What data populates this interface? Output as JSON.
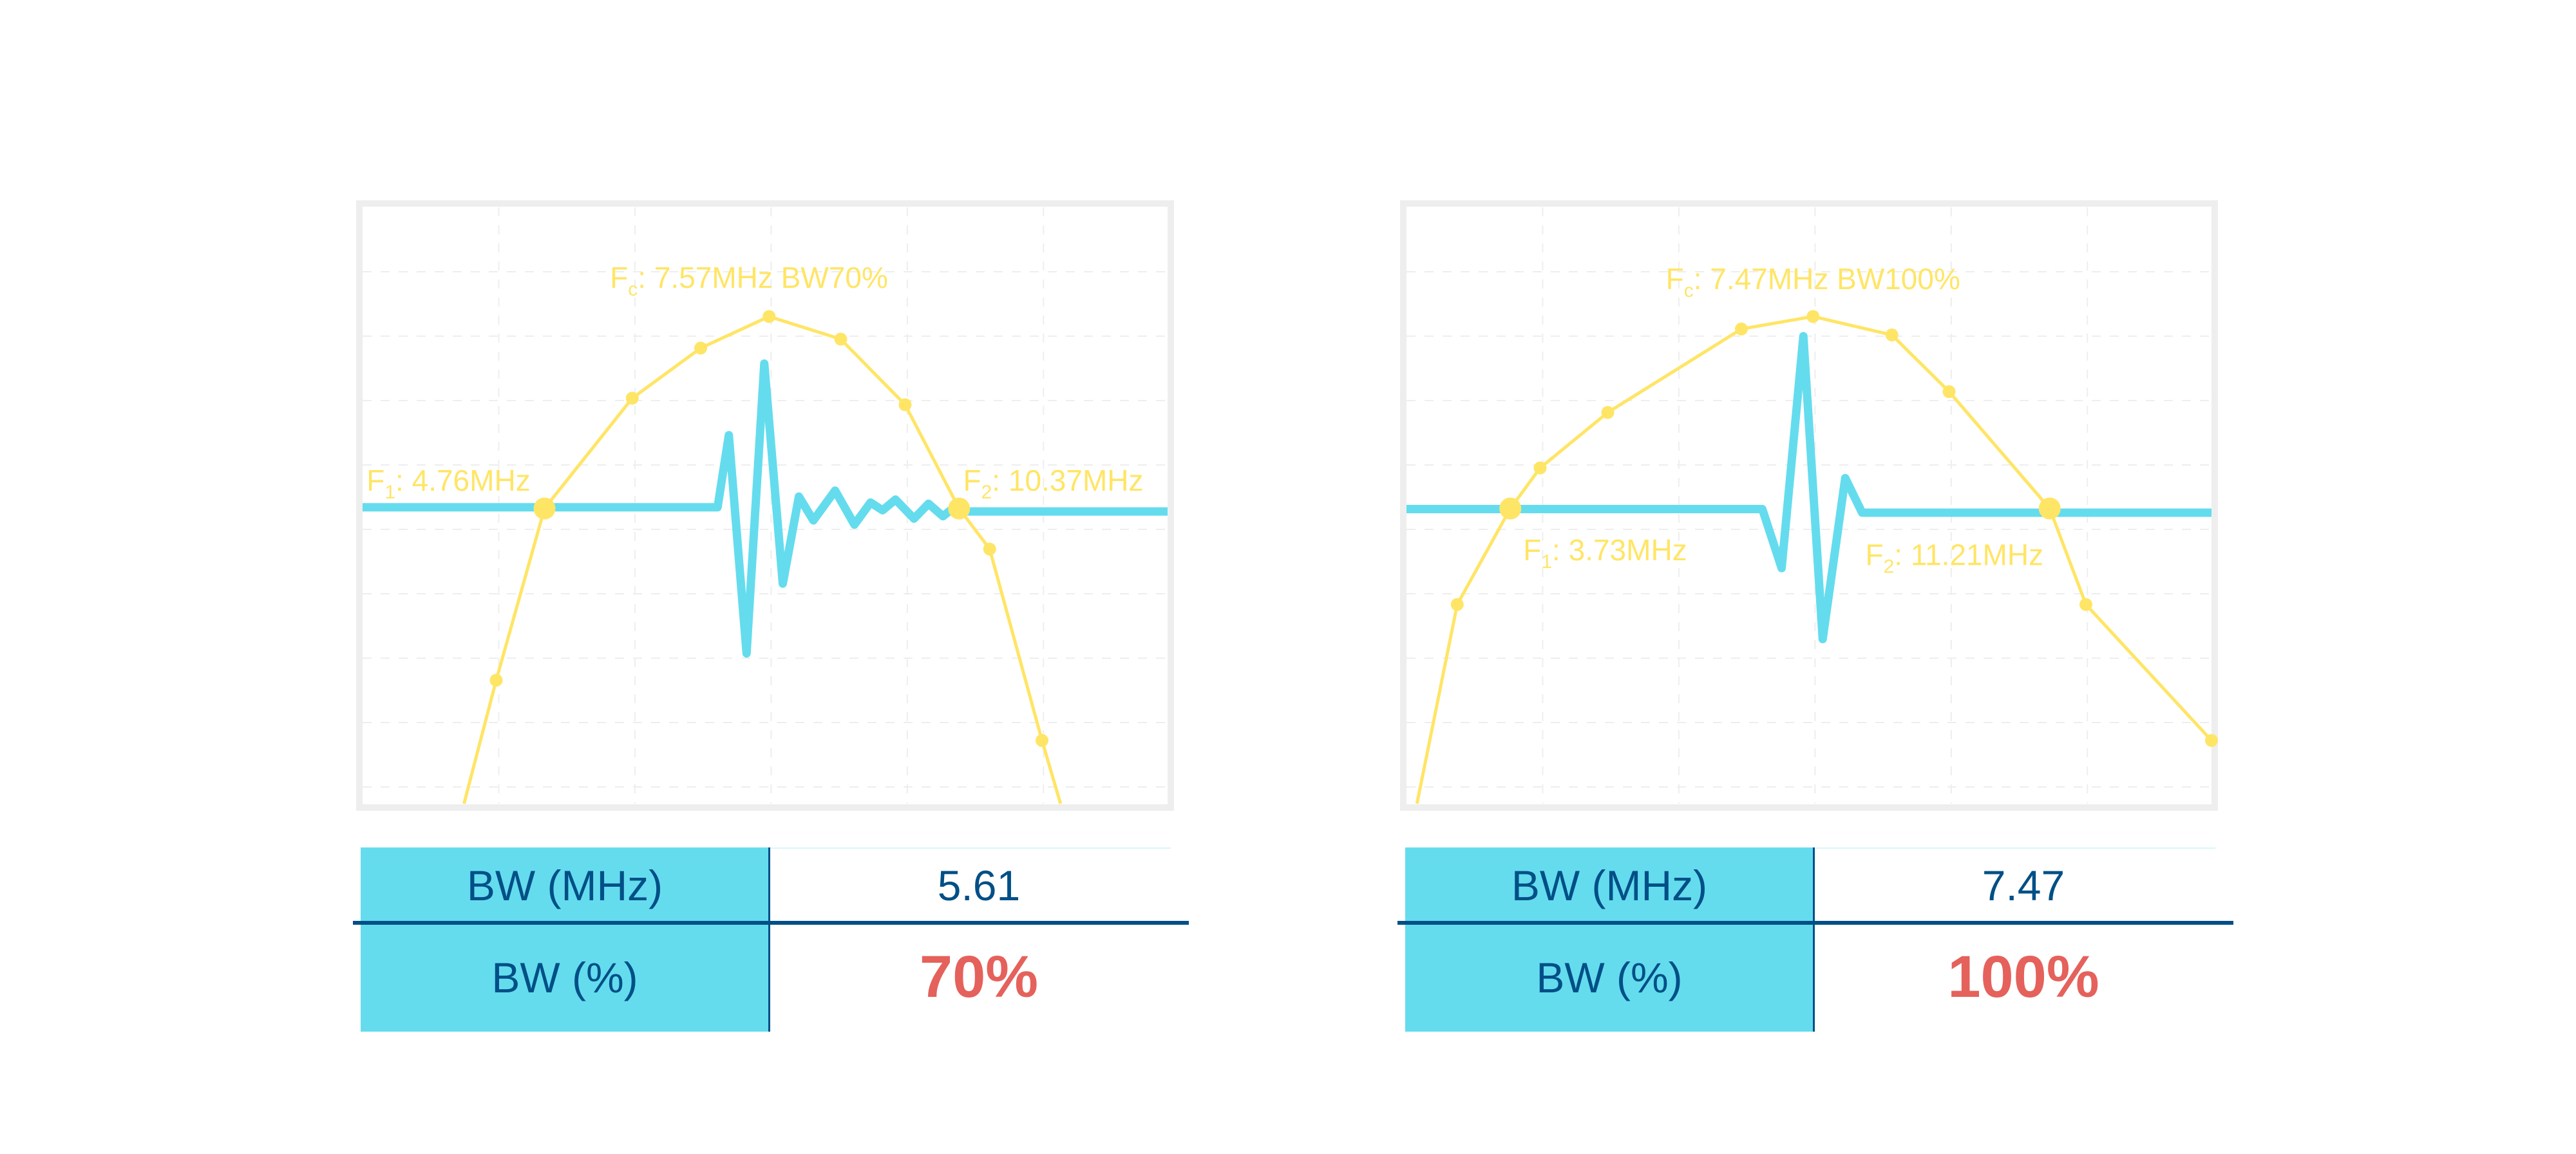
{
  "colors": {
    "response": "#ffe566",
    "pulse": "#64dcee",
    "header_cell": "#64dcee",
    "text": "#004f86",
    "percent": "#e5615b",
    "frame": "#eeeeee",
    "grid": "#eeeeee"
  },
  "chart_data": [
    {
      "type": "line",
      "grid": true,
      "xlim": [
        0,
        100
      ],
      "ylim": [
        0,
        100
      ],
      "series": [
        {
          "role": "frequency-response",
          "points": [
            [
              12.6,
              0
            ],
            [
              16.6,
              20.7
            ],
            [
              22.6,
              49.5
            ],
            [
              33.5,
              68.0
            ],
            [
              42.0,
              76.4
            ],
            [
              50.5,
              81.7
            ],
            [
              59.4,
              77.9
            ],
            [
              67.4,
              66.9
            ],
            [
              74.1,
              49.5
            ],
            [
              77.9,
              42.7
            ],
            [
              84.4,
              10.6
            ],
            [
              86.7,
              0
            ]
          ],
          "markers": [
            1,
            2,
            3,
            4,
            5,
            6,
            7,
            8,
            9,
            10
          ],
          "large_markers": [
            2,
            8
          ]
        },
        {
          "role": "pulse",
          "points": [
            [
              0,
              49.7
            ],
            [
              44.1,
              49.7
            ],
            [
              45.5,
              61.8
            ],
            [
              47.7,
              25.2
            ],
            [
              49.9,
              73.8
            ],
            [
              52.2,
              36.9
            ],
            [
              54.2,
              51.5
            ],
            [
              56.0,
              47.5
            ],
            [
              58.7,
              52.5
            ],
            [
              61.1,
              46.8
            ],
            [
              63.1,
              50.5
            ],
            [
              64.6,
              49.2
            ],
            [
              66.2,
              51.0
            ],
            [
              68.5,
              47.8
            ],
            [
              70.3,
              50.3
            ],
            [
              72.1,
              48.2
            ],
            [
              73.3,
              49.5
            ],
            [
              74.6,
              49.0
            ],
            [
              100,
              49.0
            ]
          ]
        }
      ],
      "annotations": {
        "fc": {
          "main": "F",
          "sub": "c",
          "rest": ": 7.57MHz BW70%"
        },
        "f1": {
          "main": "F",
          "sub": "1",
          "rest": ": 4.76MHz"
        },
        "f2": {
          "main": "F",
          "sub": "2",
          "rest": ": 10.37MHz"
        }
      }
    },
    {
      "type": "line",
      "grid": true,
      "xlim": [
        0,
        100
      ],
      "ylim": [
        0,
        100
      ],
      "series": [
        {
          "role": "frequency-response",
          "points": [
            [
              1.3,
              0
            ],
            [
              6.3,
              33.4
            ],
            [
              12.9,
              49.5
            ],
            [
              16.6,
              56.3
            ],
            [
              25.0,
              65.6
            ],
            [
              41.6,
              79.6
            ],
            [
              50.5,
              81.7
            ],
            [
              60.3,
              78.6
            ],
            [
              67.4,
              69.1
            ],
            [
              79.9,
              49.5
            ],
            [
              84.4,
              33.4
            ],
            [
              100,
              10.6
            ]
          ],
          "markers": [
            1,
            2,
            3,
            4,
            5,
            6,
            7,
            8,
            9,
            10,
            11
          ],
          "large_markers": [
            2,
            9
          ]
        },
        {
          "role": "pulse",
          "points": [
            [
              0,
              49.4
            ],
            [
              44.2,
              49.4
            ],
            [
              46.6,
              39.5
            ],
            [
              49.3,
              78.4
            ],
            [
              51.7,
              27.6
            ],
            [
              54.5,
              54.6
            ],
            [
              56.6,
              48.8
            ],
            [
              100,
              48.8
            ]
          ]
        }
      ],
      "annotations": {
        "fc": {
          "main": "F",
          "sub": "c",
          "rest": ": 7.47MHz BW100%"
        },
        "f1": {
          "main": "F",
          "sub": "1",
          "rest": ": 3.73MHz"
        },
        "f2": {
          "main": "F",
          "sub": "2",
          "rest": ": 11.21MHz"
        }
      }
    }
  ],
  "tables": [
    {
      "row1_label": "BW (MHz)",
      "row1_value": "5.61",
      "row2_label": "BW (%)",
      "row2_value": "70%"
    },
    {
      "row1_label": "BW (MHz)",
      "row1_value": "7.47",
      "row2_label": "BW (%)",
      "row2_value": "100%"
    }
  ]
}
